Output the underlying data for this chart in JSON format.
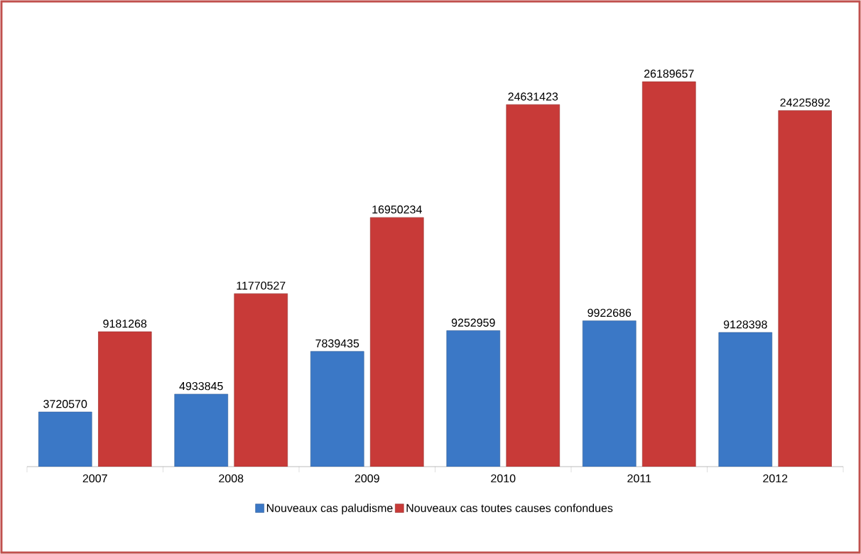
{
  "chart_data": {
    "type": "bar",
    "categories": [
      "2007",
      "2008",
      "2009",
      "2010",
      "2011",
      "2012"
    ],
    "series": [
      {
        "name": "Nouveaux cas paludisme",
        "color": "#3b78c6",
        "values": [
          3720570,
          4933845,
          7839435,
          9252959,
          9922686,
          9128398
        ]
      },
      {
        "name": "Nouveaux cas toutes causes confondues",
        "color": "#c83a38",
        "values": [
          9181268,
          11770527,
          16950234,
          24631423,
          26189657,
          24225892
        ]
      }
    ],
    "data_labels": true,
    "legend": "bottom"
  }
}
